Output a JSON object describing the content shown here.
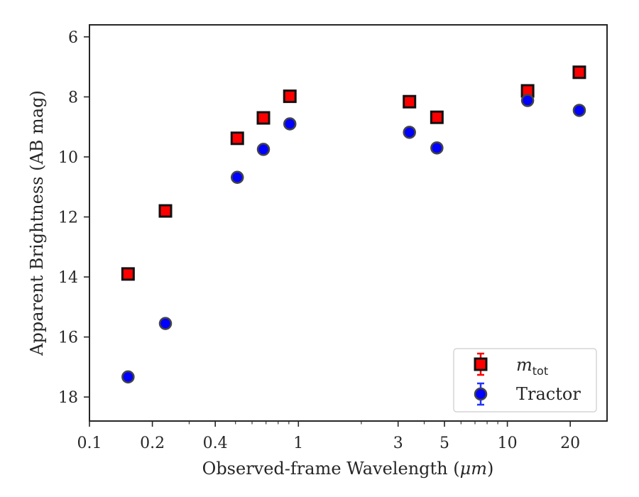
{
  "chart_data": {
    "type": "scatter",
    "xlabel_prefix": "Observed-frame Wavelength (",
    "xlabel_unit": "μm",
    "xlabel_suffix": ")",
    "ylabel": "Apparent Brightness (AB mag)",
    "xscale": "log",
    "xlim": [
      0.1,
      30
    ],
    "ylim": [
      18.8,
      5.6
    ],
    "y_inverted": true,
    "grid": false,
    "legend_position": "lower right",
    "xticks": [
      {
        "value": 0.1,
        "label": "0.1"
      },
      {
        "value": 0.2,
        "label": "0.2"
      },
      {
        "value": 0.4,
        "label": "0.4"
      },
      {
        "value": 1,
        "label": "1"
      },
      {
        "value": 3,
        "label": "3"
      },
      {
        "value": 5,
        "label": "5"
      },
      {
        "value": 10,
        "label": "10"
      },
      {
        "value": 20,
        "label": "20"
      }
    ],
    "yticks": [
      {
        "value": 6,
        "label": "6"
      },
      {
        "value": 8,
        "label": "8"
      },
      {
        "value": 10,
        "label": "10"
      },
      {
        "value": 12,
        "label": "12"
      },
      {
        "value": 14,
        "label": "14"
      },
      {
        "value": 16,
        "label": "16"
      },
      {
        "value": 18,
        "label": "18"
      }
    ],
    "series": [
      {
        "name_base": "m",
        "name_sub": "tot",
        "marker": "square",
        "color": "#ff0000",
        "edge_color": "#111111",
        "points": [
          {
            "x": 0.153,
            "y": 13.9
          },
          {
            "x": 0.231,
            "y": 11.8
          },
          {
            "x": 0.51,
            "y": 9.38
          },
          {
            "x": 0.68,
            "y": 8.7
          },
          {
            "x": 0.91,
            "y": 7.98
          },
          {
            "x": 3.4,
            "y": 8.16
          },
          {
            "x": 4.6,
            "y": 8.68
          },
          {
            "x": 12.5,
            "y": 7.8
          },
          {
            "x": 22.1,
            "y": 7.18
          }
        ]
      },
      {
        "name": "Tractor",
        "marker": "circle",
        "color": "#0000ff",
        "edge_color": "#444444",
        "points": [
          {
            "x": 0.153,
            "y": 17.33
          },
          {
            "x": 0.231,
            "y": 15.55
          },
          {
            "x": 0.51,
            "y": 10.68
          },
          {
            "x": 0.68,
            "y": 9.75
          },
          {
            "x": 0.91,
            "y": 8.9
          },
          {
            "x": 3.4,
            "y": 9.18
          },
          {
            "x": 4.6,
            "y": 9.7
          },
          {
            "x": 12.5,
            "y": 8.12
          },
          {
            "x": 22.1,
            "y": 8.45
          }
        ]
      }
    ]
  }
}
